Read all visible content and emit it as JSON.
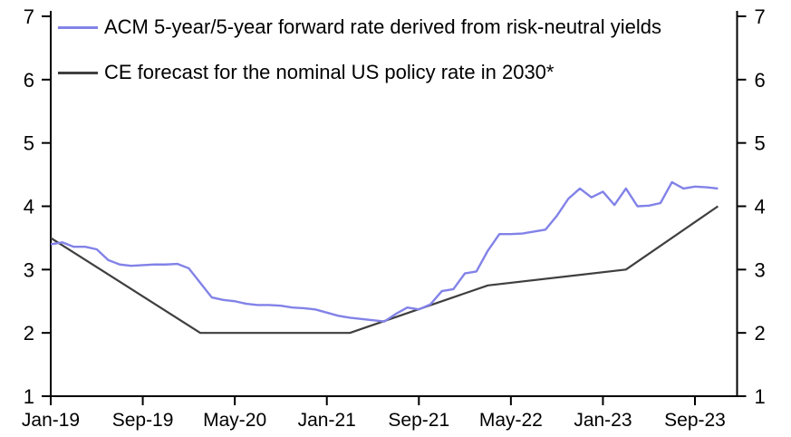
{
  "chart_data": {
    "type": "line",
    "title": "",
    "grid": false,
    "legend_position": "top-left",
    "x_axis": {
      "unit": "month",
      "tick_labels": [
        "Jan-19",
        "Sep-19",
        "May-20",
        "Jan-21",
        "Sep-21",
        "May-22",
        "Jan-23",
        "Sep-23"
      ],
      "tick_month_indices": [
        0,
        8,
        16,
        24,
        32,
        40,
        48,
        56
      ],
      "domain_month_range": [
        0,
        59.6
      ]
    },
    "y_axis": {
      "min": 1,
      "max": 7,
      "ticks": [
        1,
        2,
        3,
        4,
        5,
        6,
        7
      ],
      "label_sides": "both"
    },
    "series": [
      {
        "name": "ACM 5-year/5-year forward rate derived from risk-neutral yields",
        "color": "#8282e8",
        "sampling": "monthly",
        "start_month": "Jan-19",
        "end_month": "Nov-23",
        "values": [
          3.4,
          3.43,
          3.36,
          3.36,
          3.32,
          3.15,
          3.08,
          3.06,
          3.07,
          3.08,
          3.08,
          3.09,
          3.02,
          2.79,
          2.56,
          2.52,
          2.5,
          2.46,
          2.44,
          2.44,
          2.43,
          2.4,
          2.39,
          2.37,
          2.32,
          2.27,
          2.24,
          2.22,
          2.2,
          2.18,
          2.3,
          2.4,
          2.37,
          2.45,
          2.66,
          2.69,
          2.94,
          2.97,
          3.3,
          3.56,
          3.56,
          3.57,
          3.6,
          3.63,
          3.85,
          4.12,
          4.28,
          4.14,
          4.23,
          4.02,
          4.28,
          4.0,
          4.01,
          4.05,
          4.38,
          4.28,
          4.31,
          4.3,
          4.28
        ]
      },
      {
        "name": "CE forecast for the nominal US policy rate in 2030*",
        "color": "#3f3f3f",
        "sampling": "breakpoints",
        "points_month_value": [
          [
            0,
            3.5
          ],
          [
            13,
            2.0
          ],
          [
            26,
            2.0
          ],
          [
            38,
            2.75
          ],
          [
            50,
            3.0
          ],
          [
            58,
            4.0
          ]
        ],
        "breakpoint_dates": [
          "Jan-19",
          "Feb-20",
          "Mar-21",
          "Mar-22",
          "Mar-23",
          "Nov-23"
        ]
      }
    ]
  },
  "colors": {
    "axis": "#000000",
    "text": "#000000",
    "background": "#ffffff"
  }
}
